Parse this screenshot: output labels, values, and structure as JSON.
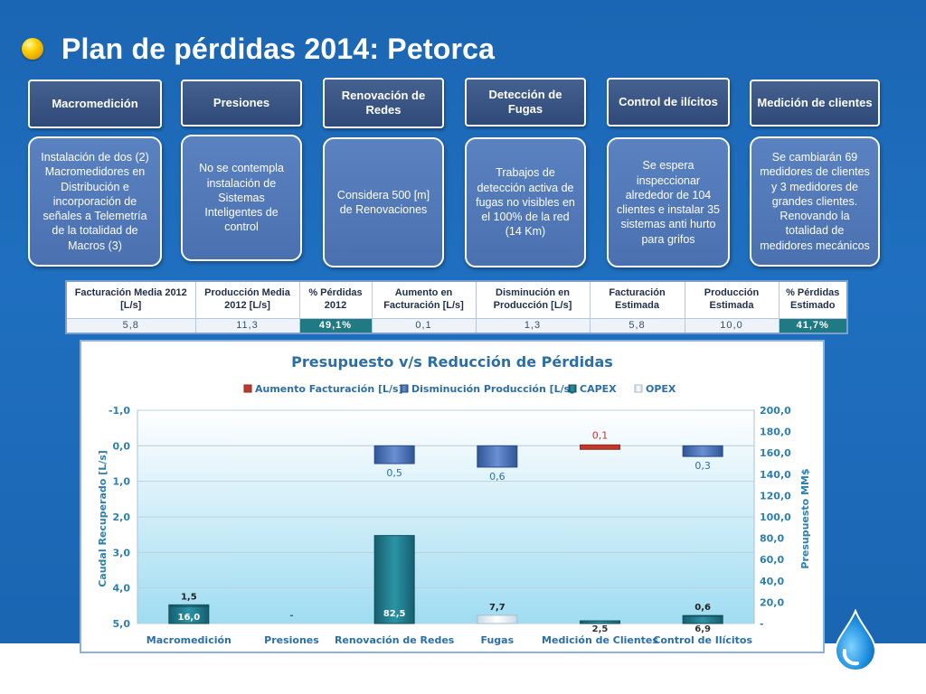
{
  "title": "Plan de pérdidas 2014: Petorca",
  "columns": [
    {
      "header": "Macromedición",
      "description": "Instalación de dos (2) Macromedidores en Distribución e incorporación de señales a Telemetría de la totalidad de Macros (3)"
    },
    {
      "header": "Presiones",
      "description": "No se contempla instalación de Sistemas Inteligentes de control"
    },
    {
      "header": "Renovación de Redes",
      "description": "Considera 500 [m] de Renovaciones"
    },
    {
      "header": "Detección de Fugas",
      "description": "Trabajos de detección activa de fugas no visibles en el 100% de la red (14 Km)"
    },
    {
      "header": "Control de ilícitos",
      "description": "Se espera inspeccionar alrededor de 104 clientes e instalar 35 sistemas anti hurto para grifos"
    },
    {
      "header": "Medición de clientes",
      "description": "Se cambiarán 69 medidores de clientes y 3 medidores de grandes clientes. Renovando la totalidad de medidores mecánicos"
    }
  ],
  "kpi_table": {
    "headers": [
      "Facturación Media 2012 [L/s]",
      "Producción Media 2012 [L/s]",
      "% Pérdidas 2012",
      "Aumento en Facturación [L/s]",
      "Disminución en Producción [L/s]",
      "Facturación Estimada",
      "Producción Estimada",
      "% Pérdidas Estimado"
    ],
    "values": [
      "5,8",
      "11,3",
      "49,1%",
      "0,1",
      "1,3",
      "5,8",
      "10,0",
      "41,7%"
    ]
  },
  "colors": {
    "background": "#1b66b3",
    "header_box": "#35507f",
    "desc_box": "#5378b8",
    "aumento": "#c0392b",
    "disminucion": "#4a72bd",
    "capex": "#1f7f91",
    "opex": "#e4eef6",
    "axis_text": "#2c7fb0"
  },
  "chart_data": {
    "type": "bar",
    "title": "Presupuesto v/s Reducción de Pérdidas",
    "legend_position": "top",
    "categories": [
      "Macromedición",
      "Presiones",
      "Renovación de Redes",
      "Fugas",
      "Medición de Clientes",
      "Control de Ilícitos"
    ],
    "y_left": {
      "label": "Caudal Recuperado [L/s]",
      "range": [
        -1.0,
        5.0
      ],
      "inverted": true,
      "ticks": [
        "-1,0",
        "0,0",
        "1,0",
        "2,0",
        "3,0",
        "4,0",
        "5,0"
      ]
    },
    "y_right": {
      "label": "Presupuesto MM$",
      "range": [
        0,
        200
      ],
      "ticks": [
        "-",
        "20,0",
        "40,0",
        "60,0",
        "80,0",
        "100,0",
        "120,0",
        "140,0",
        "160,0",
        "180,0",
        "200,0"
      ]
    },
    "series": [
      {
        "name": "Aumento Facturación [L/s]",
        "axis": "left",
        "values": [
          null,
          null,
          null,
          null,
          0.1,
          null
        ],
        "labels": [
          "",
          "",
          "",
          "",
          "0,1",
          ""
        ]
      },
      {
        "name": "Disminución Producción [L/s]",
        "axis": "left",
        "values": [
          null,
          null,
          0.5,
          0.6,
          null,
          0.3
        ],
        "labels": [
          "",
          "",
          "0,5",
          "0,6",
          "",
          "0,3"
        ]
      },
      {
        "name": "CAPEX",
        "axis": "right",
        "values": [
          16.0,
          0,
          82.5,
          null,
          2.5,
          6.9
        ],
        "labels": [
          "16,0",
          "-",
          "82,5",
          "",
          "2,5",
          "6,9"
        ]
      },
      {
        "name": "OPEX",
        "axis": "right",
        "values": [
          1.5,
          null,
          null,
          7.7,
          null,
          0.6
        ],
        "labels": [
          "1,5",
          "",
          "",
          "7,7",
          "",
          "0,6"
        ]
      }
    ]
  }
}
